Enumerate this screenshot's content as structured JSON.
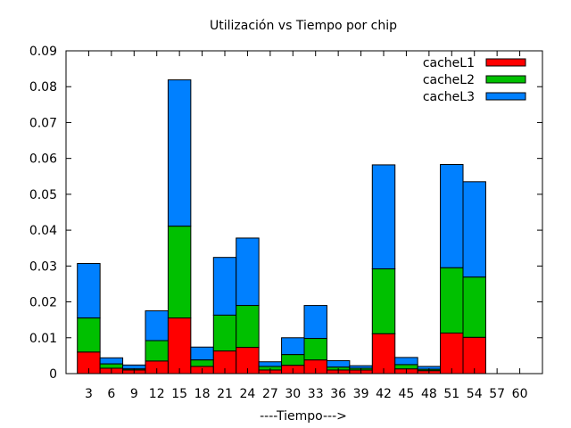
{
  "chart_data": {
    "type": "bar",
    "stacked": true,
    "title": "Utilización vs Tiempo por chip",
    "xlabel": "----Tiempo--->",
    "ylabel": "",
    "ylim": [
      0,
      0.09
    ],
    "yticks": [
      "0",
      "0.01",
      "0.02",
      "0.03",
      "0.04",
      "0.05",
      "0.06",
      "0.07",
      "0.08",
      "0.09"
    ],
    "grid": false,
    "legend": "top-right",
    "categories": [
      "3",
      "6",
      "9",
      "12",
      "15",
      "18",
      "21",
      "24",
      "27",
      "30",
      "33",
      "36",
      "39",
      "42",
      "45",
      "48",
      "51",
      "54",
      "57",
      "60"
    ],
    "series": [
      {
        "name": "cacheL1",
        "color": "#ff0000",
        "values": [
          0.006,
          0.0015,
          0.001,
          0.0035,
          0.0155,
          0.002,
          0.0063,
          0.0073,
          0.001,
          0.0023,
          0.0038,
          0.001,
          0.001,
          0.0111,
          0.0013,
          0.0008,
          0.0113,
          0.0101,
          0,
          0
        ]
      },
      {
        "name": "cacheL2",
        "color": "#00c000",
        "values": [
          0.0095,
          0.0012,
          0.0003,
          0.0057,
          0.0256,
          0.0018,
          0.01,
          0.0117,
          0.001,
          0.003,
          0.006,
          0.0008,
          0.0005,
          0.0181,
          0.0012,
          0.0004,
          0.0182,
          0.0168,
          0,
          0
        ]
      },
      {
        "name": "cacheL3",
        "color": "#0080ff",
        "values": [
          0.0152,
          0.0017,
          0.0011,
          0.0083,
          0.0408,
          0.0036,
          0.0161,
          0.0188,
          0.0013,
          0.0047,
          0.0092,
          0.0018,
          0.0007,
          0.029,
          0.002,
          0.0008,
          0.0288,
          0.0266,
          0,
          0
        ]
      }
    ]
  }
}
